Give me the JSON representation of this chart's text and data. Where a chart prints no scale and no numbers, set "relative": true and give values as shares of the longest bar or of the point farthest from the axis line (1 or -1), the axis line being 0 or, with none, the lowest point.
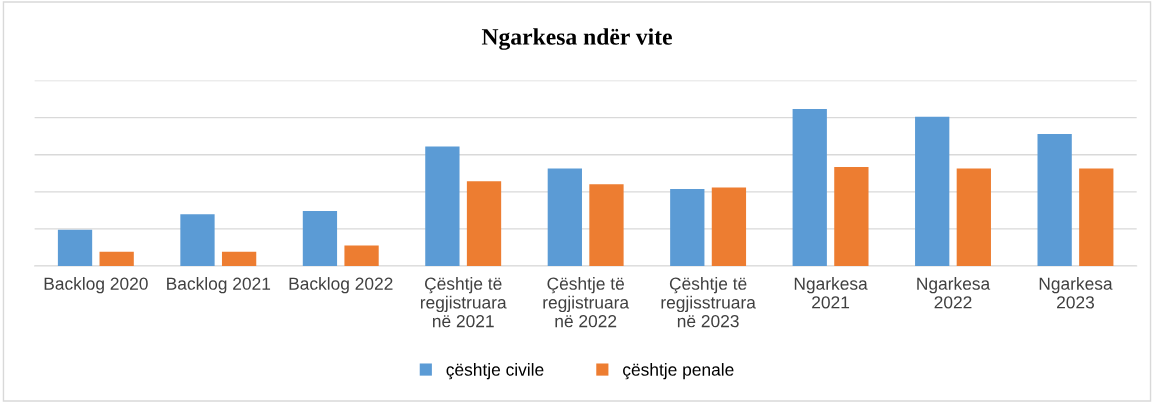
{
  "chart_data": {
    "type": "bar",
    "title": "Ngarkesa ndër vite",
    "relative": true,
    "grid": "y",
    "legend": "bottom",
    "categories": [
      "Backlog 2020",
      "Backlog 2021",
      "Backlog 2022",
      "Çështje të\nregjistruara\nnë 2021",
      "Çështje të\nregjistruara\nnë 2022",
      "Çështje të\nregjisstruara\nnë 2023",
      "Ngarkesa\n2021",
      "Ngarkesa\n2022",
      "Ngarkesa\n2023"
    ],
    "series": [
      {
        "name": "çështje civile",
        "color": "#5b9bd5",
        "values": [
          0.23,
          0.33,
          0.35,
          0.76,
          0.62,
          0.49,
          1,
          0.95,
          0.84
        ]
      },
      {
        "name": "çështje penale",
        "color": "#ed7d31",
        "values": [
          0.09,
          0.09,
          0.13,
          0.54,
          0.52,
          0.5,
          0.63,
          0.62,
          0.62
        ]
      }
    ]
  }
}
